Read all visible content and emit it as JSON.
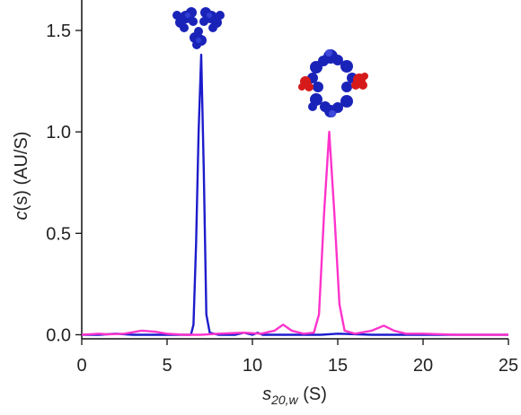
{
  "chart_data": {
    "type": "line",
    "xlabel": "s20,w (S)",
    "ylabel": "c(s) (AU/S)",
    "xlim": [
      0,
      25
    ],
    "ylim": [
      -0.02,
      1.65
    ],
    "x_ticks": [
      "0",
      "5",
      "10",
      "15",
      "20",
      "25"
    ],
    "y_ticks": [
      "0.0",
      "0.5",
      "1.0",
      "1.5"
    ],
    "grid": false,
    "series": [
      {
        "color": "#1c1ccc",
        "points": [
          [
            0,
            0
          ],
          [
            1,
            0
          ],
          [
            2,
            0.005
          ],
          [
            3,
            0
          ],
          [
            4,
            0
          ],
          [
            5,
            0
          ],
          [
            6,
            0
          ],
          [
            6.4,
            0
          ],
          [
            6.55,
            0.05
          ],
          [
            6.7,
            0.45
          ],
          [
            6.85,
            1.0
          ],
          [
            7.0,
            1.38
          ],
          [
            7.15,
            0.8
          ],
          [
            7.3,
            0.1
          ],
          [
            7.5,
            0.01
          ],
          [
            8,
            0
          ],
          [
            9,
            0
          ],
          [
            9.5,
            0.01
          ],
          [
            10,
            0
          ],
          [
            10.3,
            0.01
          ],
          [
            10.6,
            0
          ],
          [
            12,
            0
          ],
          [
            14,
            0
          ],
          [
            15,
            0.005
          ],
          [
            17,
            0
          ],
          [
            20,
            0
          ],
          [
            25,
            0
          ]
        ]
      },
      {
        "color": "#ff33cc",
        "points": [
          [
            0,
            0
          ],
          [
            1,
            0.005
          ],
          [
            1.5,
            0.002
          ],
          [
            2.5,
            0.005
          ],
          [
            3.5,
            0.02
          ],
          [
            4.3,
            0.015
          ],
          [
            5,
            0.005
          ],
          [
            6,
            0
          ],
          [
            7,
            0
          ],
          [
            8,
            0.005
          ],
          [
            9.5,
            0.01
          ],
          [
            10.5,
            0.005
          ],
          [
            11.3,
            0.02
          ],
          [
            11.8,
            0.05
          ],
          [
            12.3,
            0.02
          ],
          [
            13,
            0.005
          ],
          [
            13.6,
            0.01
          ],
          [
            13.9,
            0.1
          ],
          [
            14.2,
            0.6
          ],
          [
            14.5,
            1.0
          ],
          [
            14.8,
            0.6
          ],
          [
            15.1,
            0.15
          ],
          [
            15.4,
            0.02
          ],
          [
            16,
            0.005
          ],
          [
            17,
            0.02
          ],
          [
            17.7,
            0.045
          ],
          [
            18.3,
            0.02
          ],
          [
            19,
            0.005
          ],
          [
            20,
            0.005
          ],
          [
            22,
            0
          ],
          [
            25,
            0
          ]
        ]
      }
    ],
    "annotations": [
      {
        "kind": "molecule-image",
        "description": "IgG antibody structure (blue)",
        "x": 7.0,
        "y": 1.5
      },
      {
        "kind": "molecule-image",
        "description": "Antibody complex (blue with red)",
        "x": 14.5,
        "y": 1.2
      }
    ]
  }
}
